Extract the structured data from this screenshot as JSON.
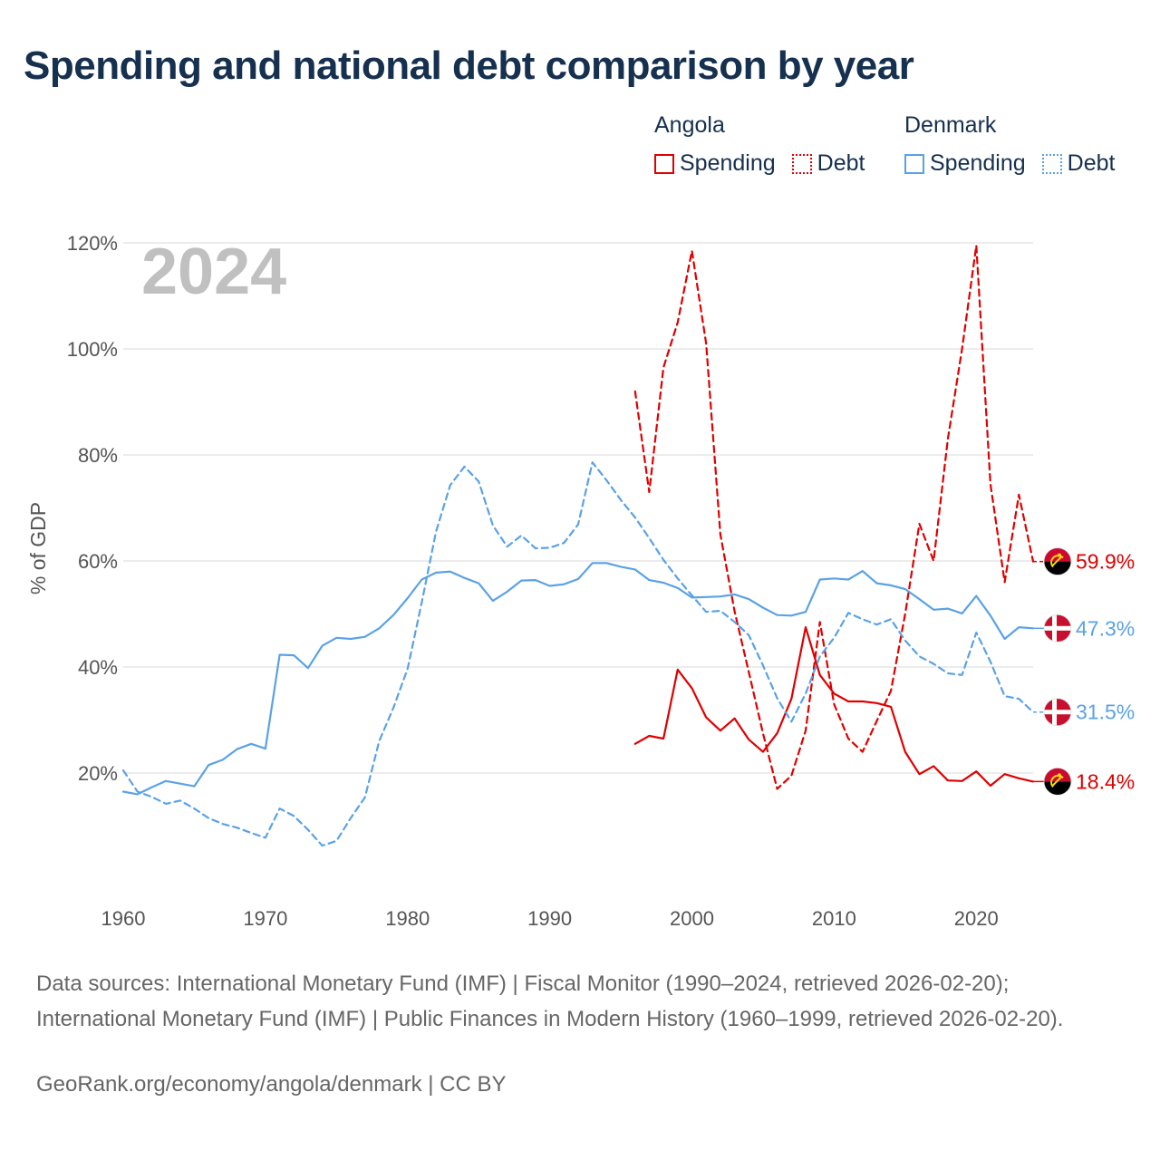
{
  "title": "Spending and national debt comparison by year",
  "legend": {
    "groups": [
      {
        "name": "Angola",
        "color": "#e00000",
        "items": [
          {
            "label": "Spending",
            "style": "solid"
          },
          {
            "label": "Debt",
            "style": "dotted"
          }
        ]
      },
      {
        "name": "Denmark",
        "color": "#5aa2e6",
        "items": [
          {
            "label": "Spending",
            "style": "solid"
          },
          {
            "label": "Debt",
            "style": "dotted"
          }
        ]
      }
    ]
  },
  "footer": {
    "sources": "Data sources: International Monetary Fund (IMF) | Fiscal Monitor (1990–2024, retrieved 2026-02-20); International Monetary Fund (IMF) | Public Finances in Modern History (1960–1999, retrieved 2026-02-20).",
    "credit": "GeoRank.org/economy/angola/denmark | CC BY"
  },
  "chart_data": {
    "type": "line",
    "title": "Spending and national debt comparison by year",
    "current_year": "2024",
    "xlabel": "",
    "ylabel": "% of GDP",
    "xlim": [
      1960,
      2024
    ],
    "ylim": [
      0,
      120
    ],
    "x_ticks": [
      1960,
      1970,
      1980,
      1990,
      2000,
      2010,
      2020
    ],
    "y_ticks": [
      20,
      40,
      60,
      80,
      100,
      120
    ],
    "y_tick_labels": [
      "20%",
      "40%",
      "60%",
      "80%",
      "100%",
      "120%"
    ],
    "grid": true,
    "series": [
      {
        "name": "Angola Spending",
        "country": "Angola",
        "color": "#e00000",
        "dash": "solid",
        "end_label": "18.4%",
        "flag": "angola",
        "x": [
          1996,
          1997,
          1998,
          1999,
          2000,
          2001,
          2002,
          2003,
          2004,
          2005,
          2006,
          2007,
          2008,
          2009,
          2010,
          2011,
          2012,
          2013,
          2014,
          2015,
          2016,
          2017,
          2018,
          2019,
          2020,
          2021,
          2022,
          2023,
          2024
        ],
        "values": [
          25.5,
          27,
          26.5,
          39.5,
          36,
          30.5,
          28,
          30.3,
          26.3,
          24,
          27.5,
          34,
          47.5,
          38.5,
          35,
          33.5,
          33.5,
          33.2,
          32.5,
          24,
          19.8,
          21.3,
          18.6,
          18.5,
          20.3,
          17.6,
          19.8,
          19,
          18.4
        ]
      },
      {
        "name": "Angola Debt",
        "country": "Angola",
        "color": "#e00000",
        "dash": "dashed",
        "end_label": "59.9%",
        "flag": "angola",
        "x": [
          1996,
          1997,
          1998,
          1999,
          2000,
          2001,
          2002,
          2003,
          2004,
          2005,
          2006,
          2007,
          2008,
          2009,
          2010,
          2011,
          2012,
          2013,
          2014,
          2015,
          2016,
          2017,
          2018,
          2019,
          2020,
          2021,
          2022,
          2023,
          2024
        ],
        "values": [
          92,
          73,
          96.5,
          105,
          118.5,
          101,
          65,
          50.5,
          39,
          27.5,
          17,
          19.5,
          28,
          48.5,
          33,
          26.5,
          24,
          29.8,
          35.5,
          50,
          67,
          60,
          83,
          100,
          119.5,
          74.5,
          56,
          72.5,
          59.9
        ]
      },
      {
        "name": "Denmark Spending",
        "country": "Denmark",
        "color": "#5aa2e6",
        "dash": "solid",
        "end_label": "47.3%",
        "flag": "denmark",
        "x": [
          1960,
          1961,
          1962,
          1963,
          1964,
          1965,
          1966,
          1967,
          1968,
          1969,
          1970,
          1971,
          1972,
          1973,
          1974,
          1975,
          1976,
          1977,
          1978,
          1979,
          1980,
          1981,
          1982,
          1983,
          1984,
          1985,
          1986,
          1987,
          1988,
          1989,
          1990,
          1991,
          1992,
          1993,
          1994,
          1995,
          1996,
          1997,
          1998,
          1999,
          2000,
          2001,
          2002,
          2003,
          2004,
          2005,
          2006,
          2007,
          2008,
          2009,
          2010,
          2011,
          2012,
          2013,
          2014,
          2015,
          2016,
          2017,
          2018,
          2019,
          2020,
          2021,
          2022,
          2023,
          2024
        ],
        "values": [
          16.5,
          16,
          17.3,
          18.5,
          18,
          17.5,
          21.5,
          22.5,
          24.5,
          25.5,
          24.6,
          42.3,
          42.2,
          39.8,
          44,
          45.5,
          45.3,
          45.7,
          47.3,
          49.8,
          53,
          56.5,
          57.8,
          58,
          56.8,
          55.8,
          52.5,
          54.2,
          56.3,
          56.4,
          55.3,
          55.6,
          56.6,
          59.6,
          59.6,
          58.9,
          58.4,
          56.4,
          55.9,
          54.9,
          53.1,
          53.2,
          53.3,
          53.7,
          52.8,
          51.2,
          49.8,
          49.7,
          50.4,
          56.5,
          56.7,
          56.5,
          58.1,
          55.8,
          55.4,
          54.7,
          52.8,
          50.8,
          51,
          50.1,
          53.4,
          49.7,
          45.3,
          47.5,
          47.3
        ]
      },
      {
        "name": "Denmark Debt",
        "country": "Denmark",
        "color": "#5aa2e6",
        "dash": "dashed",
        "end_label": "31.5%",
        "flag": "denmark",
        "x": [
          1960,
          1961,
          1962,
          1963,
          1964,
          1965,
          1966,
          1967,
          1968,
          1969,
          1970,
          1971,
          1972,
          1973,
          1974,
          1975,
          1976,
          1977,
          1978,
          1979,
          1980,
          1981,
          1982,
          1983,
          1984,
          1985,
          1986,
          1987,
          1988,
          1989,
          1990,
          1991,
          1992,
          1993,
          1994,
          1995,
          1996,
          1997,
          1998,
          1999,
          2000,
          2001,
          2002,
          2003,
          2004,
          2005,
          2006,
          2007,
          2008,
          2009,
          2010,
          2011,
          2012,
          2013,
          2014,
          2015,
          2016,
          2017,
          2018,
          2019,
          2020,
          2021,
          2022,
          2023,
          2024
        ],
        "values": [
          20.5,
          16.5,
          15.5,
          14.2,
          14.8,
          13.3,
          11.5,
          10.4,
          9.7,
          8.7,
          7.8,
          13.3,
          11.9,
          9.3,
          6.3,
          7.2,
          11.5,
          15.4,
          26,
          32.3,
          39.7,
          52.2,
          65.5,
          74.3,
          77.8,
          75,
          66.7,
          62.7,
          64.8,
          62.4,
          62.5,
          63.4,
          66.9,
          78.6,
          75.2,
          71.5,
          68.2,
          64.3,
          60.2,
          56.7,
          53.5,
          50.4,
          50.6,
          48.5,
          46,
          40.3,
          34.1,
          29.7,
          35,
          42,
          45.5,
          50.2,
          49,
          48,
          49,
          45,
          42,
          40.6,
          38.8,
          38.5,
          46.5,
          41,
          34.5,
          34,
          31.5
        ]
      }
    ]
  }
}
